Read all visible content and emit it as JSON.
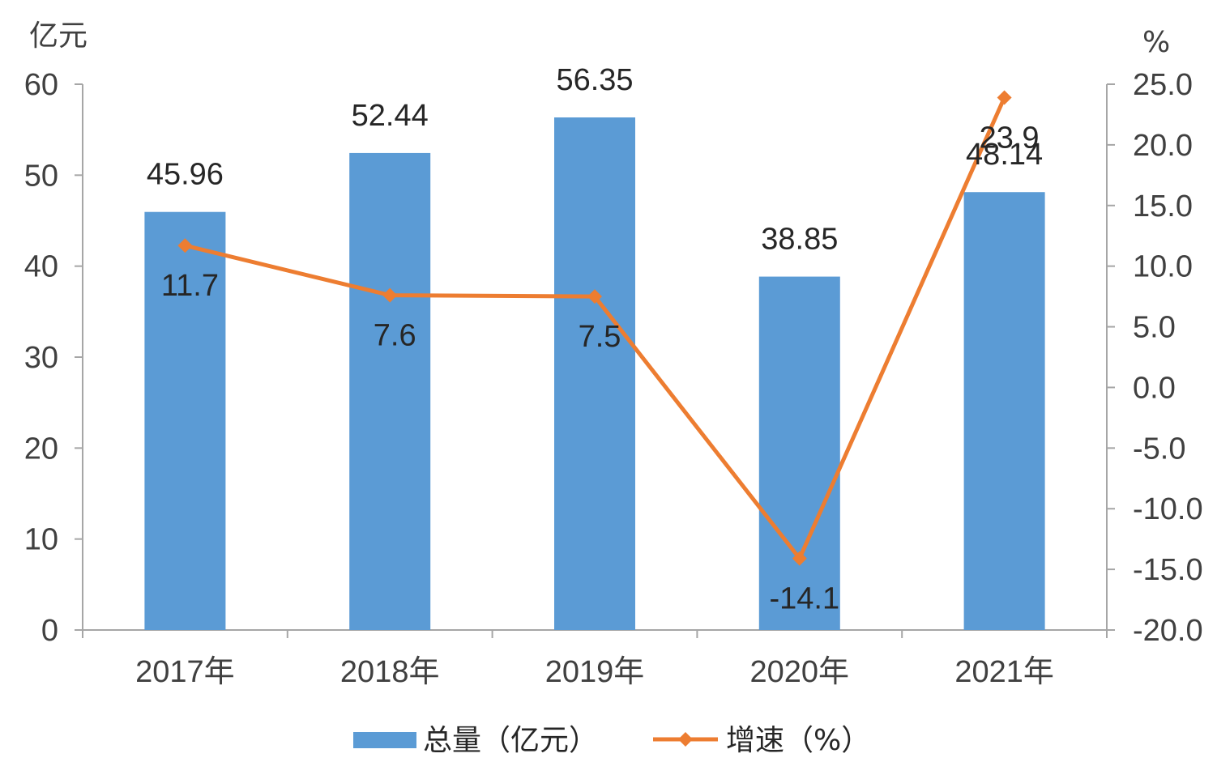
{
  "chart_data": {
    "type": "bar+line",
    "categories": [
      "2017年",
      "2018年",
      "2019年",
      "2020年",
      "2021年"
    ],
    "series": [
      {
        "name": "总量（亿元）",
        "type": "bar",
        "axis": "left",
        "color": "#5B9BD5",
        "values": [
          45.96,
          52.44,
          56.35,
          38.85,
          48.14
        ],
        "labels": [
          "45.96",
          "52.44",
          "56.35",
          "38.85",
          "48.14"
        ]
      },
      {
        "name": "增速（%）",
        "type": "line",
        "axis": "right",
        "color": "#ED7D31",
        "marker": "diamond",
        "values": [
          11.7,
          7.6,
          7.5,
          -14.1,
          23.9
        ],
        "labels": [
          "11.7",
          "7.6",
          "7.5",
          "-14.1",
          "23.9"
        ]
      }
    ],
    "left_axis": {
      "unit": "亿元",
      "ylim": [
        0,
        60
      ],
      "ticks": [
        "0",
        "10",
        "20",
        "30",
        "40",
        "50",
        "60"
      ],
      "tick_values": [
        0,
        10,
        20,
        30,
        40,
        50,
        60
      ]
    },
    "right_axis": {
      "unit": "%",
      "ylim": [
        -20,
        25
      ],
      "ticks": [
        "-20.0",
        "-15.0",
        "-10.0",
        "-5.0",
        "0.0",
        "5.0",
        "10.0",
        "15.0",
        "20.0",
        "25.0"
      ],
      "tick_values": [
        -20,
        -15,
        -10,
        -5,
        0,
        5,
        10,
        15,
        20,
        25
      ]
    },
    "grid": false,
    "legend_position": "bottom",
    "title": "",
    "xlabel": ""
  }
}
